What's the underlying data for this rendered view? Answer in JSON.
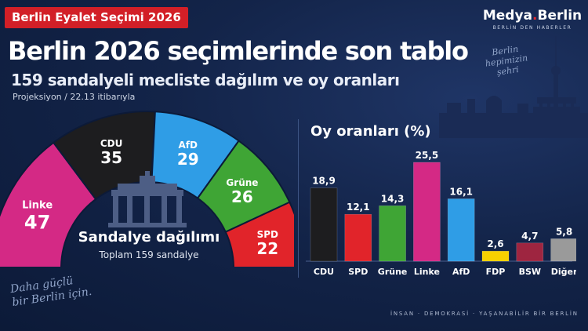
{
  "header": {
    "badge": "Berlin Eyalet Seçimi 2026",
    "logo_name_a": "Medya",
    "logo_dot": ".",
    "logo_name_b": "Berlin",
    "logo_sub": "BERLİN DEN HABERLER",
    "title": "Berlin 2026 seçimlerinde son tablo",
    "subtitle": "159 sandalyeli mecliste dağılım ve oy oranları",
    "projection": "Projeksiyon / 22.13 itibarıyla"
  },
  "motto_right": [
    "Berlin",
    "hepimizin",
    "şehri"
  ],
  "motto_left": [
    "Daha güçlü",
    "bir Berlin için."
  ],
  "seats": {
    "title": "Sandalye dağılımı",
    "subtitle": "Toplam 159 sandalye"
  },
  "footer": "İNSAN · DEMOKRASİ · YAŞANABİLİR BİR BERLİN",
  "colors": {
    "CDU": "#1d1d1f",
    "SPD": "#e1242a",
    "Grüne": "#3fa535",
    "Linke": "#d42985",
    "AfD": "#2f9de6",
    "FDP": "#f7d000",
    "BSW": "#9e2540",
    "Diğer": "#9a9a9a"
  },
  "chart_data": [
    {
      "type": "pie",
      "variant": "half-donut",
      "title": "Sandalye dağılımı",
      "subtitle": "Toplam 159 sandalye",
      "categories": [
        "Linke",
        "CDU",
        "AfD",
        "Grüne",
        "SPD"
      ],
      "values": [
        47,
        35,
        29,
        26,
        22
      ],
      "total": 159
    },
    {
      "type": "bar",
      "title": "Oy oranları (%)",
      "categories": [
        "CDU",
        "SPD",
        "Grüne",
        "Linke",
        "AfD",
        "FDP",
        "BSW",
        "Diğer"
      ],
      "values": [
        18.9,
        12.1,
        14.3,
        25.5,
        16.1,
        2.6,
        4.7,
        5.8
      ],
      "value_labels": [
        "18,9",
        "12,1",
        "14,3",
        "25,5",
        "16,1",
        "2,6",
        "4,7",
        "5,8"
      ],
      "ylim": [
        0,
        25.5
      ],
      "grid": false
    }
  ]
}
